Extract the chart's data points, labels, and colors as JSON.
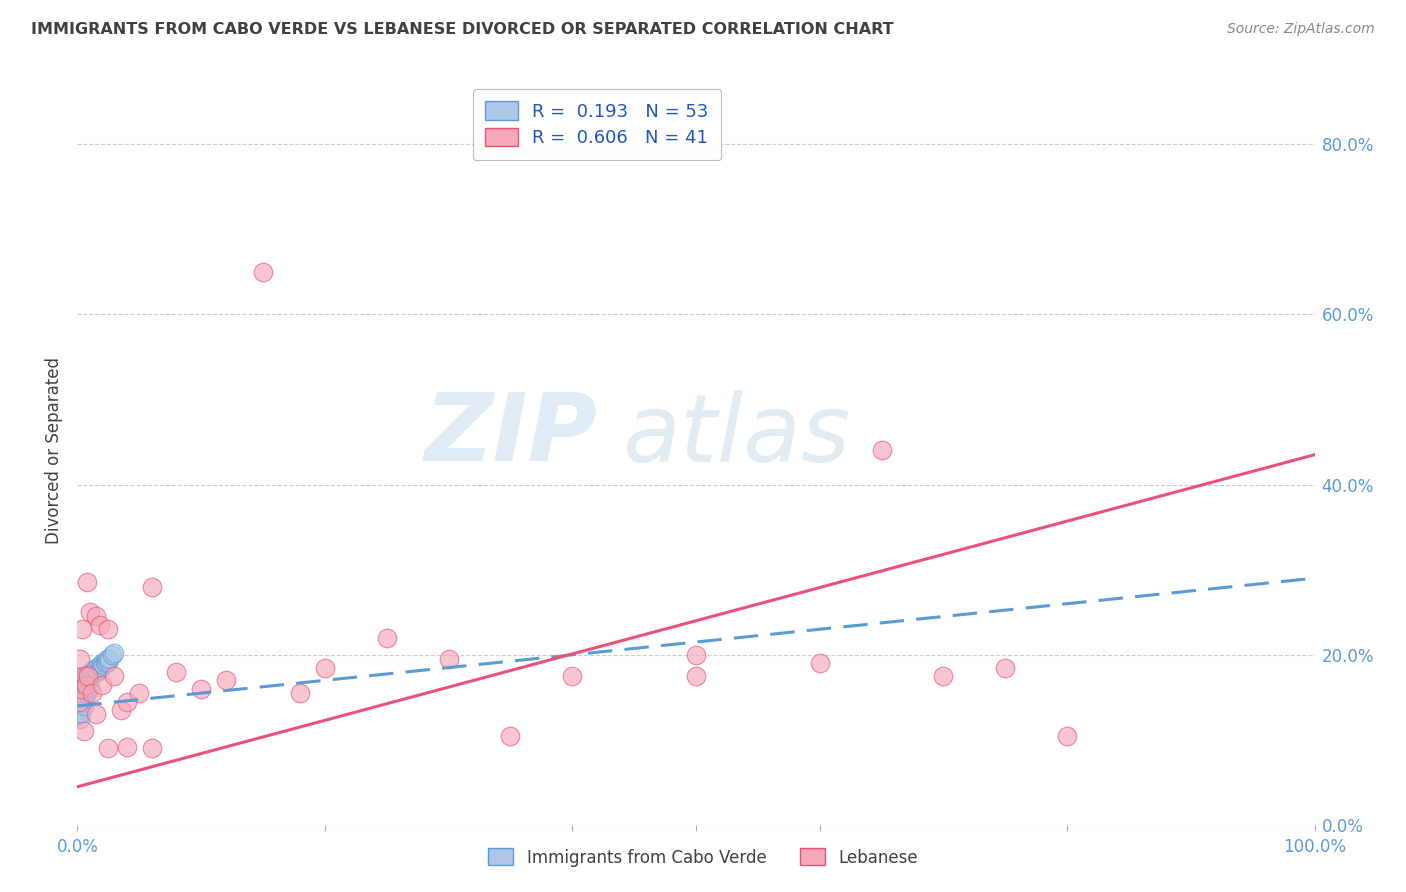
{
  "title": "IMMIGRANTS FROM CABO VERDE VS LEBANESE DIVORCED OR SEPARATED CORRELATION CHART",
  "source": "Source: ZipAtlas.com",
  "ylabel": "Divorced or Separated",
  "right_yticks": [
    "0.0%",
    "20.0%",
    "40.0%",
    "60.0%",
    "80.0%"
  ],
  "right_ytick_vals": [
    0.0,
    0.2,
    0.4,
    0.6,
    0.8
  ],
  "legend_labels_bottom": [
    "Immigrants from Cabo Verde",
    "Lebanese"
  ],
  "watermark_zip": "ZIP",
  "watermark_atlas": "atlas",
  "cabo_verde_line_color": "#5b9bd5",
  "lebanese_line_color": "#e8517a",
  "cabo_verde_scatter_color": "#aec6e8",
  "lebanese_scatter_color": "#f4a8b8",
  "background_color": "#ffffff",
  "grid_color": "#cccccc",
  "title_color": "#404040",
  "axis_label_color": "#5b9bd5",
  "xlim": [
    0.0,
    1.0
  ],
  "ylim": [
    0.0,
    0.88
  ],
  "cabo_verde_line_x0": 0.0,
  "cabo_verde_line_y0": 0.14,
  "cabo_verde_line_x1": 1.0,
  "cabo_verde_line_y1": 0.29,
  "lebanese_line_x0": 0.0,
  "lebanese_line_y0": 0.045,
  "lebanese_line_x1": 1.0,
  "lebanese_line_y1": 0.435,
  "cabo_verde_x": [
    0.001,
    0.001,
    0.001,
    0.001,
    0.002,
    0.002,
    0.002,
    0.002,
    0.002,
    0.002,
    0.003,
    0.003,
    0.003,
    0.003,
    0.003,
    0.003,
    0.004,
    0.004,
    0.004,
    0.004,
    0.005,
    0.005,
    0.005,
    0.005,
    0.006,
    0.006,
    0.006,
    0.007,
    0.007,
    0.008,
    0.008,
    0.009,
    0.009,
    0.01,
    0.01,
    0.011,
    0.012,
    0.013,
    0.014,
    0.015,
    0.016,
    0.017,
    0.018,
    0.019,
    0.02,
    0.021,
    0.022,
    0.023,
    0.024,
    0.025,
    0.026,
    0.028,
    0.03
  ],
  "cabo_verde_y": [
    0.155,
    0.148,
    0.138,
    0.13,
    0.162,
    0.155,
    0.148,
    0.142,
    0.135,
    0.125,
    0.17,
    0.165,
    0.158,
    0.15,
    0.142,
    0.132,
    0.175,
    0.165,
    0.155,
    0.145,
    0.168,
    0.16,
    0.152,
    0.14,
    0.172,
    0.162,
    0.15,
    0.168,
    0.155,
    0.175,
    0.16,
    0.172,
    0.158,
    0.178,
    0.162,
    0.18,
    0.182,
    0.178,
    0.182,
    0.185,
    0.18,
    0.182,
    0.188,
    0.185,
    0.19,
    0.188,
    0.192,
    0.19,
    0.195,
    0.192,
    0.195,
    0.2,
    0.202
  ],
  "lebanese_x": [
    0.001,
    0.002,
    0.003,
    0.004,
    0.005,
    0.006,
    0.007,
    0.008,
    0.009,
    0.01,
    0.012,
    0.015,
    0.018,
    0.02,
    0.025,
    0.03,
    0.035,
    0.04,
    0.05,
    0.06,
    0.08,
    0.1,
    0.12,
    0.15,
    0.18,
    0.2,
    0.25,
    0.3,
    0.35,
    0.4,
    0.5,
    0.6,
    0.65,
    0.7,
    0.75,
    0.8,
    0.015,
    0.025,
    0.04,
    0.06,
    0.5
  ],
  "lebanese_y": [
    0.145,
    0.195,
    0.16,
    0.23,
    0.11,
    0.175,
    0.165,
    0.285,
    0.175,
    0.25,
    0.155,
    0.245,
    0.235,
    0.165,
    0.23,
    0.175,
    0.135,
    0.145,
    0.155,
    0.28,
    0.18,
    0.16,
    0.17,
    0.65,
    0.155,
    0.185,
    0.22,
    0.195,
    0.105,
    0.175,
    0.2,
    0.19,
    0.44,
    0.175,
    0.185,
    0.105,
    0.13,
    0.09,
    0.092,
    0.09,
    0.175
  ],
  "legend_r1": "R =  0.193",
  "legend_n1": "N = 53",
  "legend_r2": "R =  0.606",
  "legend_n2": "N = 41"
}
